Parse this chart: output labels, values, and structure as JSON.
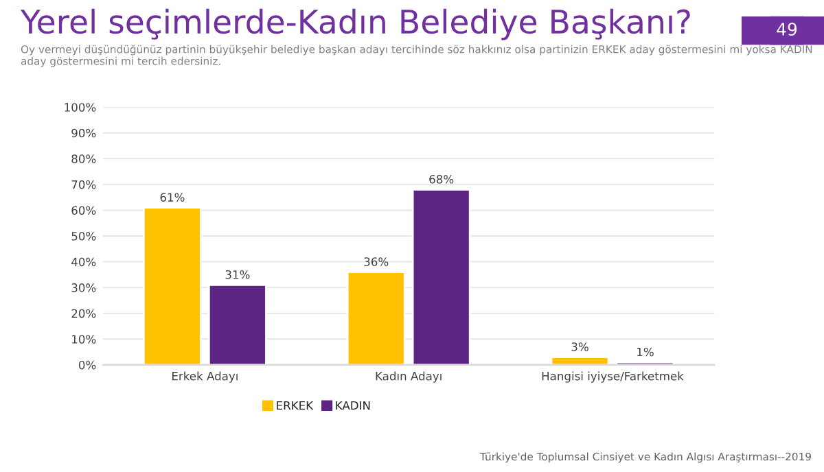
{
  "chart_data": {
    "type": "bar",
    "title": "Yerel seçimlerde-Kadın Belediye Başkanı?",
    "subtitle": "Oy vermeyi düşündüğünüz partinin büyükşehir belediye başkan adayı tercihinde söz hakkınız olsa partinizin ERKEK aday göstermesini mi yoksa KADIN aday göstermesini mi tercih edersiniz.",
    "categories": [
      "Erkek Adayı",
      "Kadın Adayı",
      "Hangisi iyiyse/Farketmek"
    ],
    "series": [
      {
        "name": "ERKEK",
        "color": "#ffc000",
        "values": [
          61,
          36,
          3
        ]
      },
      {
        "name": "KADIN",
        "color": "#5c2483",
        "values": [
          31,
          68,
          1
        ]
      }
    ],
    "ylim": [
      0,
      100
    ],
    "yticks": [
      {
        "value": 0,
        "label": "0%"
      },
      {
        "value": 10,
        "label": "10%"
      },
      {
        "value": 20,
        "label": "20%"
      },
      {
        "value": 30,
        "label": "30%"
      },
      {
        "value": 40,
        "label": "40%"
      },
      {
        "value": 50,
        "label": "50%"
      },
      {
        "value": 60,
        "label": "60%"
      },
      {
        "value": 70,
        "label": "70%"
      },
      {
        "value": 80,
        "label": "80%"
      },
      {
        "value": 90,
        "label": "90%"
      },
      {
        "value": 100,
        "label": "100%"
      }
    ],
    "value_labels": [
      [
        "61%",
        "36%",
        "3%"
      ],
      [
        "31%",
        "68%",
        "1%"
      ]
    ],
    "grid": "y",
    "legend": "bottom",
    "annotations": [
      "49",
      "Türkiye'de Toplumsal Cinsiyet ve Kadın Algısı Araştırması--2019"
    ]
  }
}
